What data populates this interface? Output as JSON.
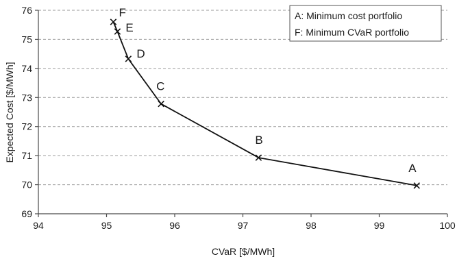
{
  "chart_data": {
    "type": "line",
    "xlabel": "CVaR [$/MWh]",
    "ylabel": "Expected Cost [$/MWh]",
    "xlim": [
      94,
      100
    ],
    "ylim": [
      69,
      76
    ],
    "xticks": [
      94,
      95,
      96,
      97,
      98,
      99,
      100
    ],
    "yticks": [
      69,
      70,
      71,
      72,
      73,
      74,
      75,
      76
    ],
    "grid": "horizontal dashed",
    "series": [
      {
        "points": [
          {
            "label": "F",
            "x": 95.1,
            "y": 75.6
          },
          {
            "label": "E",
            "x": 95.16,
            "y": 75.27
          },
          {
            "label": "D",
            "x": 95.32,
            "y": 74.33
          },
          {
            "label": "C",
            "x": 95.8,
            "y": 72.78
          },
          {
            "label": "B",
            "x": 97.23,
            "y": 70.93
          },
          {
            "label": "A",
            "x": 99.55,
            "y": 69.97
          }
        ]
      }
    ],
    "legend": {
      "placement": "top-right",
      "entries": [
        "A: Minimum cost portfolio",
        "F: Minimum CVaR portfolio"
      ]
    },
    "colors": {
      "line": "#111111",
      "grid": "#9a9a9a",
      "axis": "#4a4a4a",
      "legend_border": "#555555"
    }
  }
}
